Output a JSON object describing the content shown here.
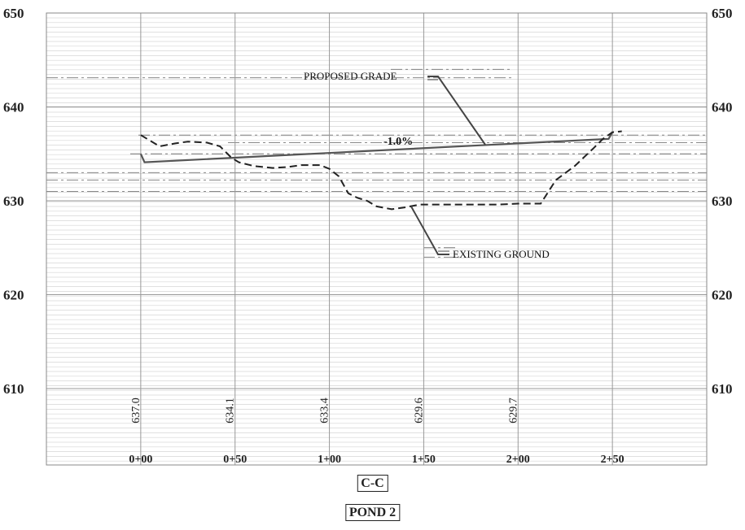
{
  "chart_data": {
    "type": "line",
    "title": "C-C",
    "subtitle": "POND 2",
    "xlabel": "",
    "ylabel": "",
    "ylim": [
      600,
      650
    ],
    "y_ticks": [
      "650",
      "640",
      "630",
      "620",
      "610"
    ],
    "y_tick_values": [
      650,
      640,
      630,
      620,
      610
    ],
    "x_domain": [
      -50,
      300
    ],
    "x_ticks": [
      {
        "value": 0,
        "label": "0+00"
      },
      {
        "value": 50,
        "label": "0+50"
      },
      {
        "value": 100,
        "label": "1+00"
      },
      {
        "value": 150,
        "label": "1+50"
      },
      {
        "value": 200,
        "label": "2+00"
      },
      {
        "value": 250,
        "label": "2+50"
      }
    ],
    "station_elevations": [
      {
        "x": 0,
        "label": "637.0"
      },
      {
        "x": 50,
        "label": "634.1"
      },
      {
        "x": 100,
        "label": "633.4"
      },
      {
        "x": 150,
        "label": "629.6"
      },
      {
        "x": 200,
        "label": "629.7"
      }
    ],
    "grid": true,
    "series": [
      {
        "name": "PROPOSED GRADE",
        "style": "solid",
        "color": "#555555",
        "points": [
          [
            0,
            635.0
          ],
          [
            2,
            634.1
          ],
          [
            248,
            636.6
          ],
          [
            250,
            637.3
          ]
        ]
      },
      {
        "name": "EXISTING GROUND",
        "style": "dashed",
        "color": "#222222",
        "points": [
          [
            0,
            637.0
          ],
          [
            10,
            635.8
          ],
          [
            18,
            636.1
          ],
          [
            25,
            636.3
          ],
          [
            35,
            636.2
          ],
          [
            42,
            635.8
          ],
          [
            48,
            634.6
          ],
          [
            52,
            634.1
          ],
          [
            60,
            633.7
          ],
          [
            70,
            633.5
          ],
          [
            78,
            633.6
          ],
          [
            85,
            633.8
          ],
          [
            95,
            633.8
          ],
          [
            100,
            633.4
          ],
          [
            105,
            632.6
          ],
          [
            110,
            630.8
          ],
          [
            115,
            630.3
          ],
          [
            120,
            630.0
          ],
          [
            125,
            629.4
          ],
          [
            133,
            629.1
          ],
          [
            140,
            629.3
          ],
          [
            148,
            629.6
          ],
          [
            150,
            629.6
          ],
          [
            170,
            629.6
          ],
          [
            190,
            629.6
          ],
          [
            200,
            629.7
          ],
          [
            210,
            629.7
          ],
          [
            212,
            629.7
          ],
          [
            220,
            632.2
          ],
          [
            230,
            633.7
          ],
          [
            240,
            635.6
          ],
          [
            245,
            636.6
          ],
          [
            250,
            637.3
          ],
          [
            255,
            637.4
          ]
        ]
      }
    ],
    "annotations": {
      "proposed_label": "PROPOSED GRADE",
      "existing_label": "EXISTING GROUND",
      "slope_label": "-1.0%"
    }
  },
  "labels": {
    "section": "C-C",
    "pond": "POND 2"
  }
}
